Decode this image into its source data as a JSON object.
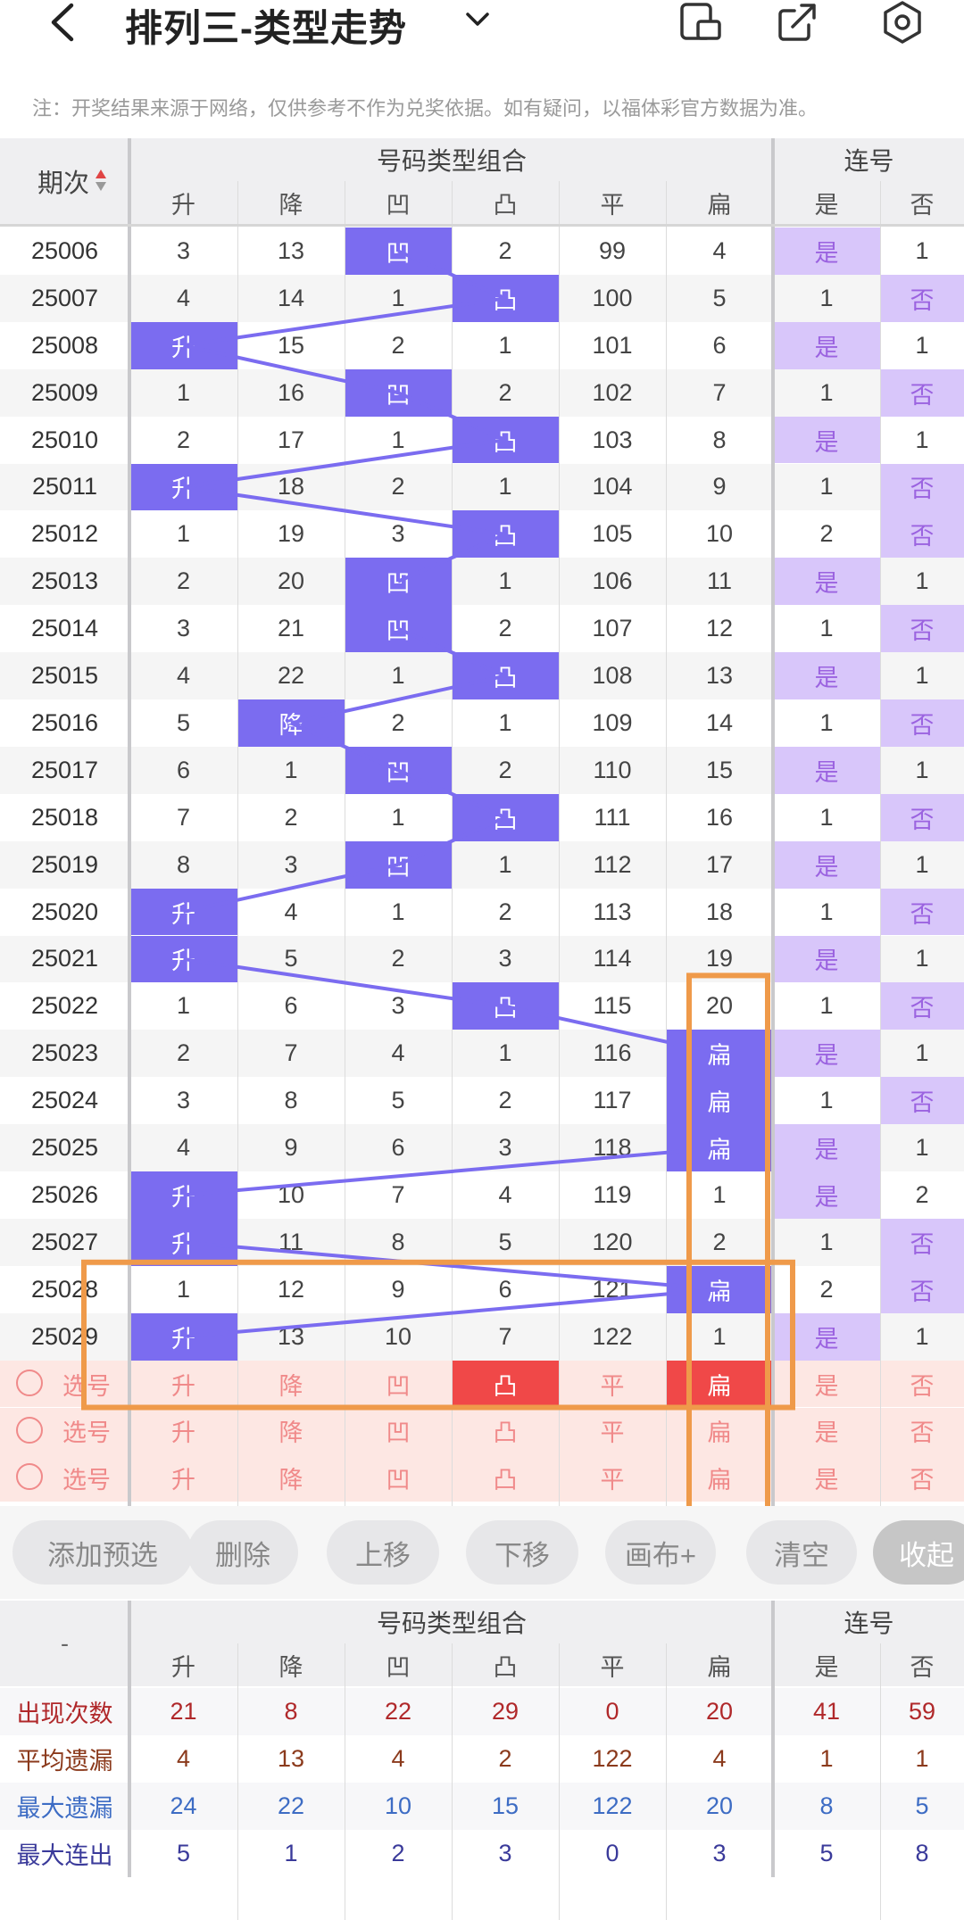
{
  "header": {
    "title": "排列三-类型走势",
    "notice": "注：开奖结果来源于网络，仅供参考不作为兑奖依据。如有疑问，以福体彩官方数据为准。"
  },
  "table": {
    "col_period": "期次",
    "group_type": "号码类型组合",
    "group_consec": "连号",
    "columns": [
      "升",
      "降",
      "凹",
      "凸",
      "平",
      "扁",
      "是",
      "否"
    ],
    "rows": [
      {
        "p": "25006",
        "v": [
          "3",
          "13",
          "凹",
          "2",
          "99",
          "4",
          "是",
          "1"
        ]
      },
      {
        "p": "25007",
        "v": [
          "4",
          "14",
          "1",
          "凸",
          "100",
          "5",
          "1",
          "否"
        ]
      },
      {
        "p": "25008",
        "v": [
          "升",
          "15",
          "2",
          "1",
          "101",
          "6",
          "是",
          "1"
        ]
      },
      {
        "p": "25009",
        "v": [
          "1",
          "16",
          "凹",
          "2",
          "102",
          "7",
          "1",
          "否"
        ]
      },
      {
        "p": "25010",
        "v": [
          "2",
          "17",
          "1",
          "凸",
          "103",
          "8",
          "是",
          "1"
        ]
      },
      {
        "p": "25011",
        "v": [
          "升",
          "18",
          "2",
          "1",
          "104",
          "9",
          "1",
          "否"
        ]
      },
      {
        "p": "25012",
        "v": [
          "1",
          "19",
          "3",
          "凸",
          "105",
          "10",
          "2",
          "否"
        ]
      },
      {
        "p": "25013",
        "v": [
          "2",
          "20",
          "凹",
          "1",
          "106",
          "11",
          "是",
          "1"
        ]
      },
      {
        "p": "25014",
        "v": [
          "3",
          "21",
          "凹",
          "2",
          "107",
          "12",
          "1",
          "否"
        ]
      },
      {
        "p": "25015",
        "v": [
          "4",
          "22",
          "1",
          "凸",
          "108",
          "13",
          "是",
          "1"
        ]
      },
      {
        "p": "25016",
        "v": [
          "5",
          "降",
          "2",
          "1",
          "109",
          "14",
          "1",
          "否"
        ]
      },
      {
        "p": "25017",
        "v": [
          "6",
          "1",
          "凹",
          "2",
          "110",
          "15",
          "是",
          "1"
        ]
      },
      {
        "p": "25018",
        "v": [
          "7",
          "2",
          "1",
          "凸",
          "111",
          "16",
          "1",
          "否"
        ]
      },
      {
        "p": "25019",
        "v": [
          "8",
          "3",
          "凹",
          "1",
          "112",
          "17",
          "是",
          "1"
        ]
      },
      {
        "p": "25020",
        "v": [
          "升",
          "4",
          "1",
          "2",
          "113",
          "18",
          "1",
          "否"
        ]
      },
      {
        "p": "25021",
        "v": [
          "升",
          "5",
          "2",
          "3",
          "114",
          "19",
          "是",
          "1"
        ]
      },
      {
        "p": "25022",
        "v": [
          "1",
          "6",
          "3",
          "凸",
          "115",
          "20",
          "1",
          "否"
        ]
      },
      {
        "p": "25023",
        "v": [
          "2",
          "7",
          "4",
          "1",
          "116",
          "扁",
          "是",
          "1"
        ]
      },
      {
        "p": "25024",
        "v": [
          "3",
          "8",
          "5",
          "2",
          "117",
          "扁",
          "1",
          "否"
        ]
      },
      {
        "p": "25025",
        "v": [
          "4",
          "9",
          "6",
          "3",
          "118",
          "扁",
          "是",
          "1"
        ]
      },
      {
        "p": "25026",
        "v": [
          "升",
          "10",
          "7",
          "4",
          "119",
          "1",
          "是",
          "2"
        ]
      },
      {
        "p": "25027",
        "v": [
          "升",
          "11",
          "8",
          "5",
          "120",
          "2",
          "1",
          "否"
        ]
      },
      {
        "p": "25028",
        "v": [
          "1",
          "12",
          "9",
          "6",
          "121",
          "扁",
          "2",
          "否"
        ]
      },
      {
        "p": "25029",
        "v": [
          "升",
          "13",
          "10",
          "7",
          "122",
          "1",
          "是",
          "1"
        ]
      }
    ],
    "select_label": "选号",
    "select_rows": [
      {
        "selected": [
          3,
          5
        ]
      },
      {
        "selected": []
      },
      {
        "selected": []
      }
    ]
  },
  "buttons": [
    "添加预选",
    "删除",
    "上移",
    "下移",
    "画布+",
    "清空",
    "收起"
  ],
  "stats": {
    "corner": "-",
    "rows": [
      {
        "label": "出现次数",
        "color": "#b0282a",
        "v": [
          "21",
          "8",
          "22",
          "29",
          "0",
          "20",
          "41",
          "59"
        ]
      },
      {
        "label": "平均遗漏",
        "color": "#8b3a1c",
        "v": [
          "4",
          "13",
          "4",
          "2",
          "122",
          "4",
          "1",
          "1"
        ]
      },
      {
        "label": "最大遗漏",
        "color": "#3d6cc4",
        "v": [
          "24",
          "22",
          "10",
          "15",
          "122",
          "20",
          "8",
          "5"
        ]
      },
      {
        "label": "最大连出",
        "color": "#3a3a9a",
        "v": [
          "5",
          "1",
          "2",
          "3",
          "0",
          "3",
          "5",
          "8"
        ]
      }
    ]
  },
  "colors": {
    "hit": "#7b6cf0",
    "consec": "#d8c6fa",
    "consec_text": "#9b63e0",
    "line": "#7b6cf0",
    "select_bg": "#fde7e3",
    "select_text": "#f08a8a",
    "select_hit": "#f04848",
    "highlight": "#ef9a4a"
  }
}
